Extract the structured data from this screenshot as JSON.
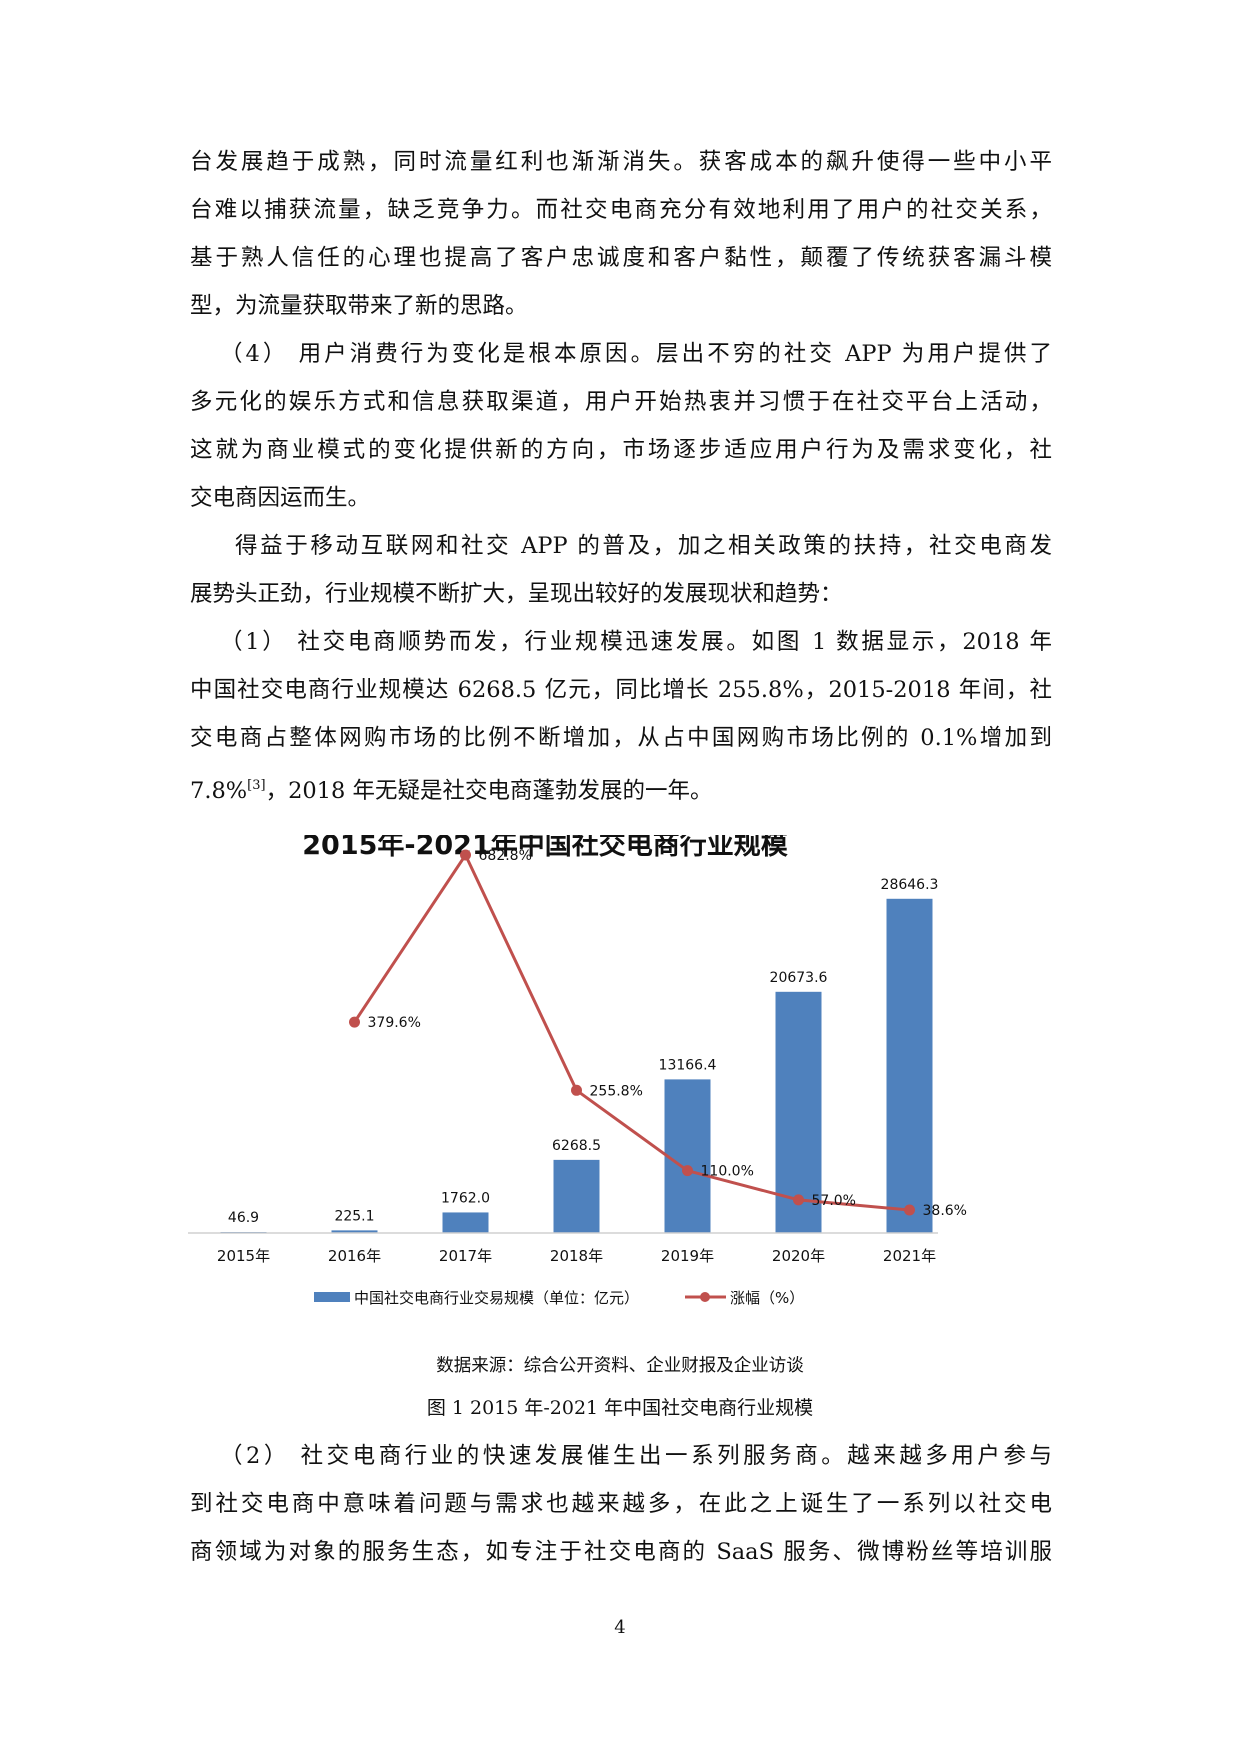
{
  "paragraphs_top": [
    {
      "lines": [
        "台发展趋于成熟，同时流量红利也渐渐消失。获客成本的飙升使得一些中小平",
        "台难以捕获流量，缺乏竞争力。而社交电商充分有效地利用了用户的社交关系，",
        "基于熟人信任的心理也提高了客户忠诚度和客户黏性，颠覆了传统获客漏斗模",
        "型，为流量获取带来了新的思路。"
      ]
    },
    {
      "lines": [
        "（4）  用户消费行为变化是根本原因。层出不穷的社交 APP 为用户提供了",
        "多元化的娱乐方式和信息获取渠道，用户开始热衷并习惯于在社交平台上活动，",
        "这就为商业模式的变化提供新的方向，市场逐步适应用户行为及需求变化，社",
        "交电商因运而生。"
      ]
    },
    {
      "lines": [
        "得益于移动互联网和社交 APP 的普及，加之相关政策的扶持，社交电商发",
        "展势头正劲，行业规模不断扩大，呈现出较好的发展现状和趋势："
      ]
    },
    {
      "lines": [
        "（1）  社交电商顺势而发，行业规模迅速发展。如图 1 数据显示，2018 年",
        "中国社交电商行业规模达 6268.5 亿元，同比增长 255.8%，2015-2018 年间，社",
        "交电商占整体网购市场的比例不断增加，从占中国网购市场比例的 0.1%增加到"
      ]
    }
  ],
  "last_line": {
    "before": "7.8%",
    "sup": "[3]",
    "after": "，2018 年无疑是社交电商蓬勃发展的一年。"
  },
  "chart_data": {
    "type": "bar",
    "title": "2015年-2021年中国社交电商行业规模",
    "categories": [
      "2015年",
      "2016年",
      "2017年",
      "2018年",
      "2019年",
      "2020年",
      "2021年"
    ],
    "series": [
      {
        "name": "中国社交电商行业交易规模（单位：亿元）",
        "type": "bar",
        "color": "#4f81bd",
        "values": [
          46.9,
          225.1,
          1762.0,
          6268.5,
          13166.4,
          20673.6,
          28646.3
        ],
        "labels": [
          "46.9",
          "225.1",
          "1762.0",
          "6268.5",
          "13166.4",
          "20673.6",
          "28646.3"
        ]
      },
      {
        "name": "涨幅（%）",
        "type": "line",
        "color": "#c0504d",
        "values": [
          null,
          379.6,
          682.8,
          255.8,
          110.0,
          57.0,
          38.6
        ],
        "labels": [
          "",
          "379.6%",
          "682.8%",
          "255.8%",
          "110.0%",
          "57.0%",
          "38.6%"
        ]
      }
    ],
    "grid": false,
    "legend_position": "bottom"
  },
  "figure": {
    "source": "数据来源：综合公开资料、企业财报及企业访谈",
    "caption": "图 1 2015 年-2021 年中国社交电商行业规模"
  },
  "paragraphs_bottom": [
    {
      "lines": [
        "（2）  社交电商行业的快速发展催生出一系列服务商。越来越多用户参与",
        "到社交电商中意味着问题与需求也越来越多，在此之上诞生了一系列以社交电",
        "商领域为对象的服务生态，如专注于社交电商的 SaaS 服务、微博粉丝等培训服"
      ]
    }
  ],
  "page_number": "4"
}
